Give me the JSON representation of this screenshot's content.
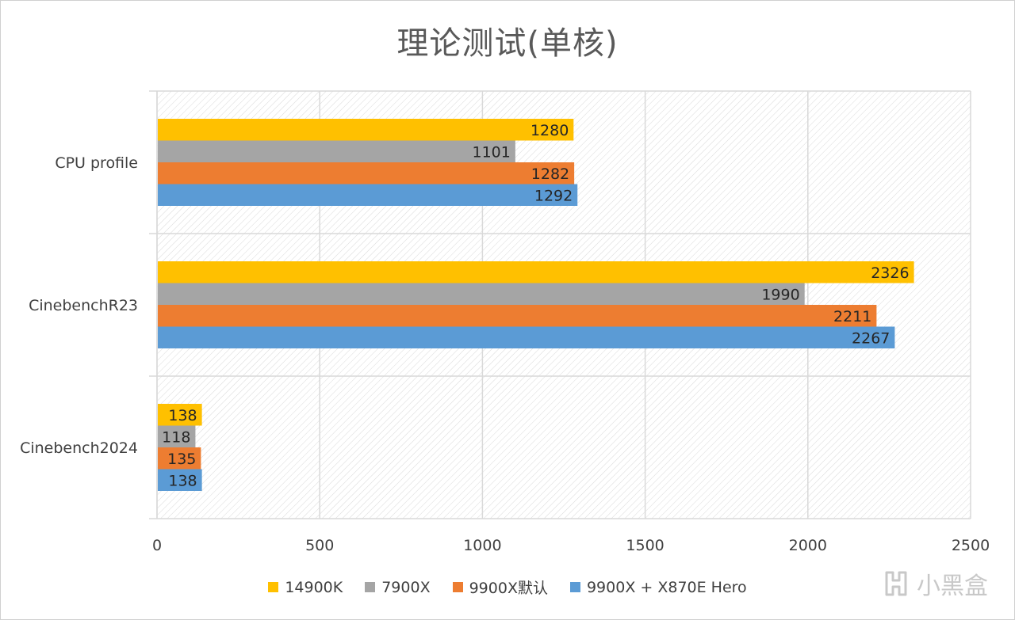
{
  "chart_data": {
    "type": "bar",
    "orientation": "horizontal",
    "title": "理论测试(单核)",
    "categories": [
      "CPU profile",
      "CinebenchR23",
      "Cinebench2024"
    ],
    "series": [
      {
        "name": "14900K",
        "color": "#ffc000",
        "values": [
          1280,
          2326,
          138
        ]
      },
      {
        "name": "7900X",
        "color": "#a5a5a5",
        "values": [
          1101,
          1990,
          118
        ]
      },
      {
        "name": "9900X默认",
        "color": "#ed7d31",
        "values": [
          1282,
          2211,
          135
        ]
      },
      {
        "name": "9900X + X870E Hero",
        "color": "#5b9bd5",
        "values": [
          1292,
          2267,
          138
        ]
      }
    ],
    "xlim": [
      0,
      2500
    ],
    "xticks": [
      0,
      500,
      1000,
      1500,
      2000,
      2500
    ],
    "xlabel": "",
    "ylabel": "",
    "grid": true,
    "legend": "bottom",
    "data_labels": true
  },
  "watermark": {
    "text": "小黑盒",
    "icon": "xiaoheihe-logo-icon"
  }
}
